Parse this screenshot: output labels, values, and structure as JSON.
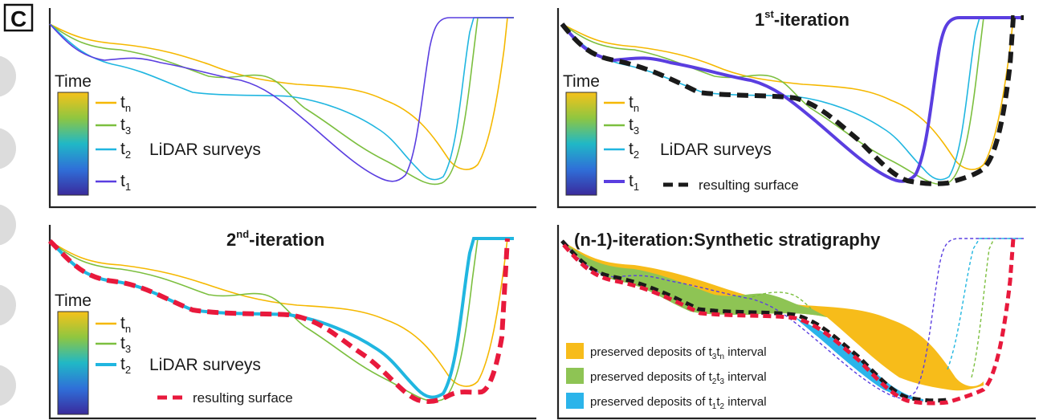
{
  "figure": {
    "panel_letter": "C",
    "colors": {
      "tn": "#f5b800",
      "t3": "#7cbf3f",
      "t2": "#20b6e0",
      "t1": "#5a3ee0",
      "result_black": "#1a1a1a",
      "result_red": "#e8193c",
      "fill_tn": "#f7bc1a",
      "fill_t3": "#8ec454",
      "fill_t2": "#2bb4ea"
    },
    "legend": {
      "time_label": "Time",
      "tn": "t",
      "tn_sub": "n",
      "t3": "t",
      "t3_sub": "3",
      "t2": "t",
      "t2_sub": "2",
      "t1": "t",
      "t1_sub": "1",
      "lidar": "LiDAR surveys",
      "resulting": "resulting surface"
    },
    "panels": {
      "p2_title_main": "1",
      "p2_title_sup": "st",
      "p2_title_rest": "-iteration",
      "p3_title_main": "2",
      "p3_title_sup": "nd",
      "p3_title_rest": "-iteration",
      "p4_title": "(n-1)-iteration:Synthetic stratigraphy"
    },
    "deposits": {
      "prefix": "preserved deposits of ",
      "tn_interval_a": "t",
      "tn_interval_a_sub": "3",
      "tn_interval_b": "t",
      "tn_interval_b_sub": "n",
      "t3_interval_a": "t",
      "t3_interval_a_sub": "2",
      "t3_interval_b": "t",
      "t3_interval_b_sub": "3",
      "t2_interval_a": "t",
      "t2_interval_a_sub": "1",
      "t2_interval_b": "t",
      "t2_interval_b_sub": "2",
      "suffix": " interval"
    }
  }
}
